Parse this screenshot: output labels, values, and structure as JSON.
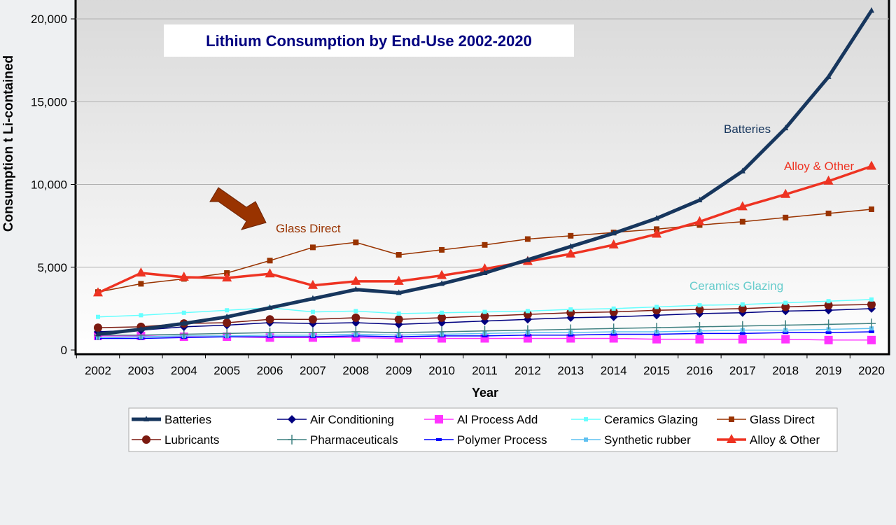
{
  "chart_data": {
    "type": "line",
    "title": "Lithium Consumption by End-Use 2002-2020",
    "xlabel": "Year",
    "ylabel": "Consumption t Li-contained",
    "ylim": [
      0,
      20000
    ],
    "yticks": [
      "0",
      "5,000",
      "10,000",
      "15,000",
      "20,000"
    ],
    "grid": true,
    "legend_position": "bottom",
    "categories": [
      "2002",
      "2003",
      "2004",
      "2005",
      "2006",
      "2007",
      "2008",
      "2009",
      "2010",
      "2011",
      "2012",
      "2013",
      "2014",
      "2015",
      "2016",
      "2017",
      "2018",
      "2019",
      "2020"
    ],
    "series": [
      {
        "name": "Batteries",
        "color": "#17365d",
        "marker": "triangle-small",
        "width": 5,
        "values": [
          950,
          1250,
          1600,
          2000,
          2550,
          3100,
          3650,
          3450,
          4000,
          4650,
          5450,
          6250,
          7050,
          7950,
          9050,
          10800,
          13400,
          16500,
          20500
        ]
      },
      {
        "name": "Air Conditioning",
        "color": "#000080",
        "marker": "diamond",
        "width": 1.5,
        "values": [
          1100,
          1200,
          1400,
          1500,
          1650,
          1600,
          1650,
          1550,
          1650,
          1750,
          1850,
          1950,
          2000,
          2100,
          2200,
          2250,
          2350,
          2400,
          2500
        ]
      },
      {
        "name": "Al Process Add",
        "color": "#ff33ff",
        "marker": "square-large",
        "width": 1.5,
        "values": [
          850,
          850,
          800,
          800,
          750,
          750,
          750,
          700,
          700,
          700,
          700,
          700,
          700,
          650,
          650,
          650,
          650,
          600,
          600
        ]
      },
      {
        "name": "Ceramics Glazing",
        "color": "#66ffff",
        "marker": "square-small",
        "width": 1.5,
        "values": [
          2000,
          2100,
          2250,
          2400,
          2550,
          2300,
          2350,
          2200,
          2250,
          2300,
          2350,
          2450,
          2500,
          2600,
          2700,
          2750,
          2850,
          2950,
          3050
        ]
      },
      {
        "name": "Glass Direct",
        "color": "#993300",
        "marker": "square",
        "width": 1.5,
        "values": [
          3500,
          4000,
          4300,
          4650,
          5400,
          6200,
          6500,
          5750,
          6050,
          6350,
          6700,
          6900,
          7100,
          7300,
          7550,
          7750,
          8000,
          8250,
          8500
        ]
      },
      {
        "name": "Lubricants",
        "color": "#7b1a10",
        "marker": "circle",
        "width": 1.5,
        "values": [
          1350,
          1400,
          1600,
          1650,
          1850,
          1850,
          1950,
          1850,
          1950,
          2050,
          2150,
          2250,
          2300,
          2400,
          2450,
          2500,
          2600,
          2700,
          2750
        ]
      },
      {
        "name": "Pharmaceuticals",
        "color": "#3f8080",
        "marker": "plus",
        "width": 1.5,
        "values": [
          900,
          900,
          950,
          1000,
          1050,
          1050,
          1100,
          1050,
          1100,
          1150,
          1200,
          1250,
          1300,
          1350,
          1400,
          1450,
          1500,
          1550,
          1600
        ]
      },
      {
        "name": "Polymer Process",
        "color": "#0000ff",
        "marker": "dash",
        "width": 1.5,
        "values": [
          700,
          700,
          750,
          800,
          800,
          800,
          850,
          800,
          850,
          850,
          900,
          900,
          950,
          950,
          1000,
          1000,
          1050,
          1050,
          1100
        ]
      },
      {
        "name": "Synthetic rubber",
        "color": "#5ec0f0",
        "marker": "square-small",
        "width": 1.5,
        "values": [
          750,
          800,
          850,
          850,
          900,
          900,
          950,
          900,
          950,
          1000,
          1050,
          1050,
          1100,
          1100,
          1150,
          1200,
          1200,
          1250,
          1300
        ]
      },
      {
        "name": "Alloy & Other",
        "color": "#ee3322",
        "marker": "triangle",
        "width": 3.5,
        "values": [
          3450,
          4650,
          4400,
          4350,
          4600,
          3900,
          4150,
          4150,
          4500,
          4900,
          5350,
          5800,
          6350,
          7000,
          7750,
          8650,
          9400,
          10200,
          11100
        ]
      }
    ],
    "annotations": [
      {
        "text": "Batteries",
        "color": "#17365d"
      },
      {
        "text": "Alloy & Other",
        "color": "#ee3322"
      },
      {
        "text": "Glass Direct",
        "color": "#993300"
      },
      {
        "text": "Ceramics Glazing",
        "color": "#66cccc"
      }
    ]
  }
}
